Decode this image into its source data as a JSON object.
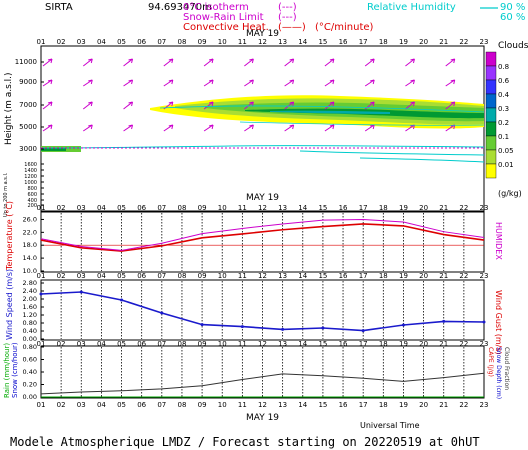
{
  "header": {
    "site": "SIRTA",
    "coords": "94.693470m",
    "legend_isotherm": "0°C isotherm",
    "legend_snow_rain": "Snow-Rain Limit",
    "legend_convective": "Convective Heat.",
    "legend_convective_unit": "(°C/minute)",
    "legend_humidity": "Relative Humidity",
    "rh_90": "90 %",
    "rh_60": "60 %",
    "dash_box": "(---)",
    "solid_box": "(——)"
  },
  "hours": [
    "01",
    "02",
    "03",
    "04",
    "05",
    "06",
    "07",
    "08",
    "09",
    "10",
    "11",
    "12",
    "13",
    "14",
    "15",
    "16",
    "17",
    "18",
    "19",
    "20",
    "21",
    "22",
    "23"
  ],
  "date_label": "MAY 19",
  "clouds": {
    "title": "Clouds",
    "unit": "(g/kg)",
    "scale_labels": [
      "0.8",
      "0.6",
      "0.4",
      "0.3",
      "0.2",
      "0.1",
      "0.05",
      "0.01"
    ],
    "scale_colors": [
      "#cc00cc",
      "#9933ff",
      "#3333ff",
      "#0066cc",
      "#00aaaa",
      "#009933",
      "#66cc33",
      "#aadd33",
      "#ffff00"
    ]
  },
  "panel1": {
    "ylabel": "Height (m a.s.l.)",
    "ylabel_small": "Up to 200 m a.s.l.",
    "yticks": [
      "11000",
      "9000",
      "7000",
      "5000",
      "3000",
      "1600",
      "1400",
      "1200",
      "1000",
      "800",
      "600",
      "400",
      "200"
    ]
  },
  "panel2": {
    "ylabel_left": "Temperature (°C)",
    "ylabel_right": "HUMIDEX",
    "yticks": [
      "26.0",
      "22.0",
      "18.0",
      "14.0",
      "10.0"
    ]
  },
  "panel3": {
    "ylabel_left": "Wind Speed (m/s)",
    "ylabel_right": "Wind Gust (m/s)",
    "yticks": [
      "2.80",
      "2.40",
      "2.00",
      "1.60",
      "1.20",
      "0.80",
      "0.40",
      "0.00"
    ]
  },
  "panel4": {
    "ylabel_left_rain": "Rain (mm/hour)",
    "ylabel_left_snow": "Snow (cm/hour)",
    "ylabel_right_cape": "CAPE (J/g)",
    "ylabel_right_snowdepth": "Snow Depth (cm)",
    "ylabel_right_cloud": "Cloud Fraction",
    "yticks": [
      "0.80",
      "0.60",
      "0.40",
      "0.20",
      "0.00"
    ],
    "xlabel": "Universal Time"
  },
  "footer": "Modele Atmospherique LMDZ / Forecast starting on 20220519 at 0hUT",
  "chart_data": [
    {
      "type": "line",
      "title": "Temperature",
      "x": [
        "01",
        "03",
        "05",
        "07",
        "09",
        "11",
        "13",
        "15",
        "17",
        "19",
        "21",
        "23"
      ],
      "series": [
        {
          "name": "Temperature",
          "color": "#dd0000",
          "values": [
            19.6,
            17.2,
            16.2,
            17.8,
            20.3,
            21.5,
            22.8,
            23.8,
            24.6,
            24.0,
            21.3,
            19.6
          ]
        },
        {
          "name": "HUMIDEX",
          "color": "#cc00cc",
          "values": [
            20.0,
            17.6,
            16.4,
            18.6,
            21.6,
            23.2,
            24.6,
            25.8,
            26.0,
            25.2,
            22.2,
            20.4
          ]
        }
      ],
      "ylim": [
        10,
        28
      ]
    },
    {
      "type": "line",
      "title": "Wind",
      "x": [
        "01",
        "03",
        "05",
        "07",
        "09",
        "11",
        "13",
        "15",
        "17",
        "19",
        "21",
        "23"
      ],
      "series": [
        {
          "name": "Wind Speed",
          "color": "#1a1acc",
          "values": [
            2.25,
            2.35,
            1.95,
            1.3,
            0.72,
            0.62,
            0.48,
            0.55,
            0.42,
            0.7,
            0.88,
            0.85
          ]
        }
      ],
      "ylim": [
        0,
        2.9
      ]
    },
    {
      "type": "line",
      "title": "Cloud fraction",
      "x": [
        "01",
        "03",
        "05",
        "07",
        "09",
        "11",
        "13",
        "15",
        "17",
        "19",
        "21",
        "23"
      ],
      "series": [
        {
          "name": "Cloud Fraction",
          "color": "#333333",
          "values": [
            0.05,
            0.08,
            0.1,
            0.13,
            0.18,
            0.28,
            0.37,
            0.34,
            0.3,
            0.25,
            0.31,
            0.38
          ]
        },
        {
          "name": "Rain",
          "color": "#00aa00",
          "values": [
            0,
            0,
            0,
            0,
            0,
            0,
            0,
            0,
            0,
            0,
            0,
            0
          ]
        }
      ],
      "ylim": [
        0,
        0.8
      ]
    }
  ]
}
